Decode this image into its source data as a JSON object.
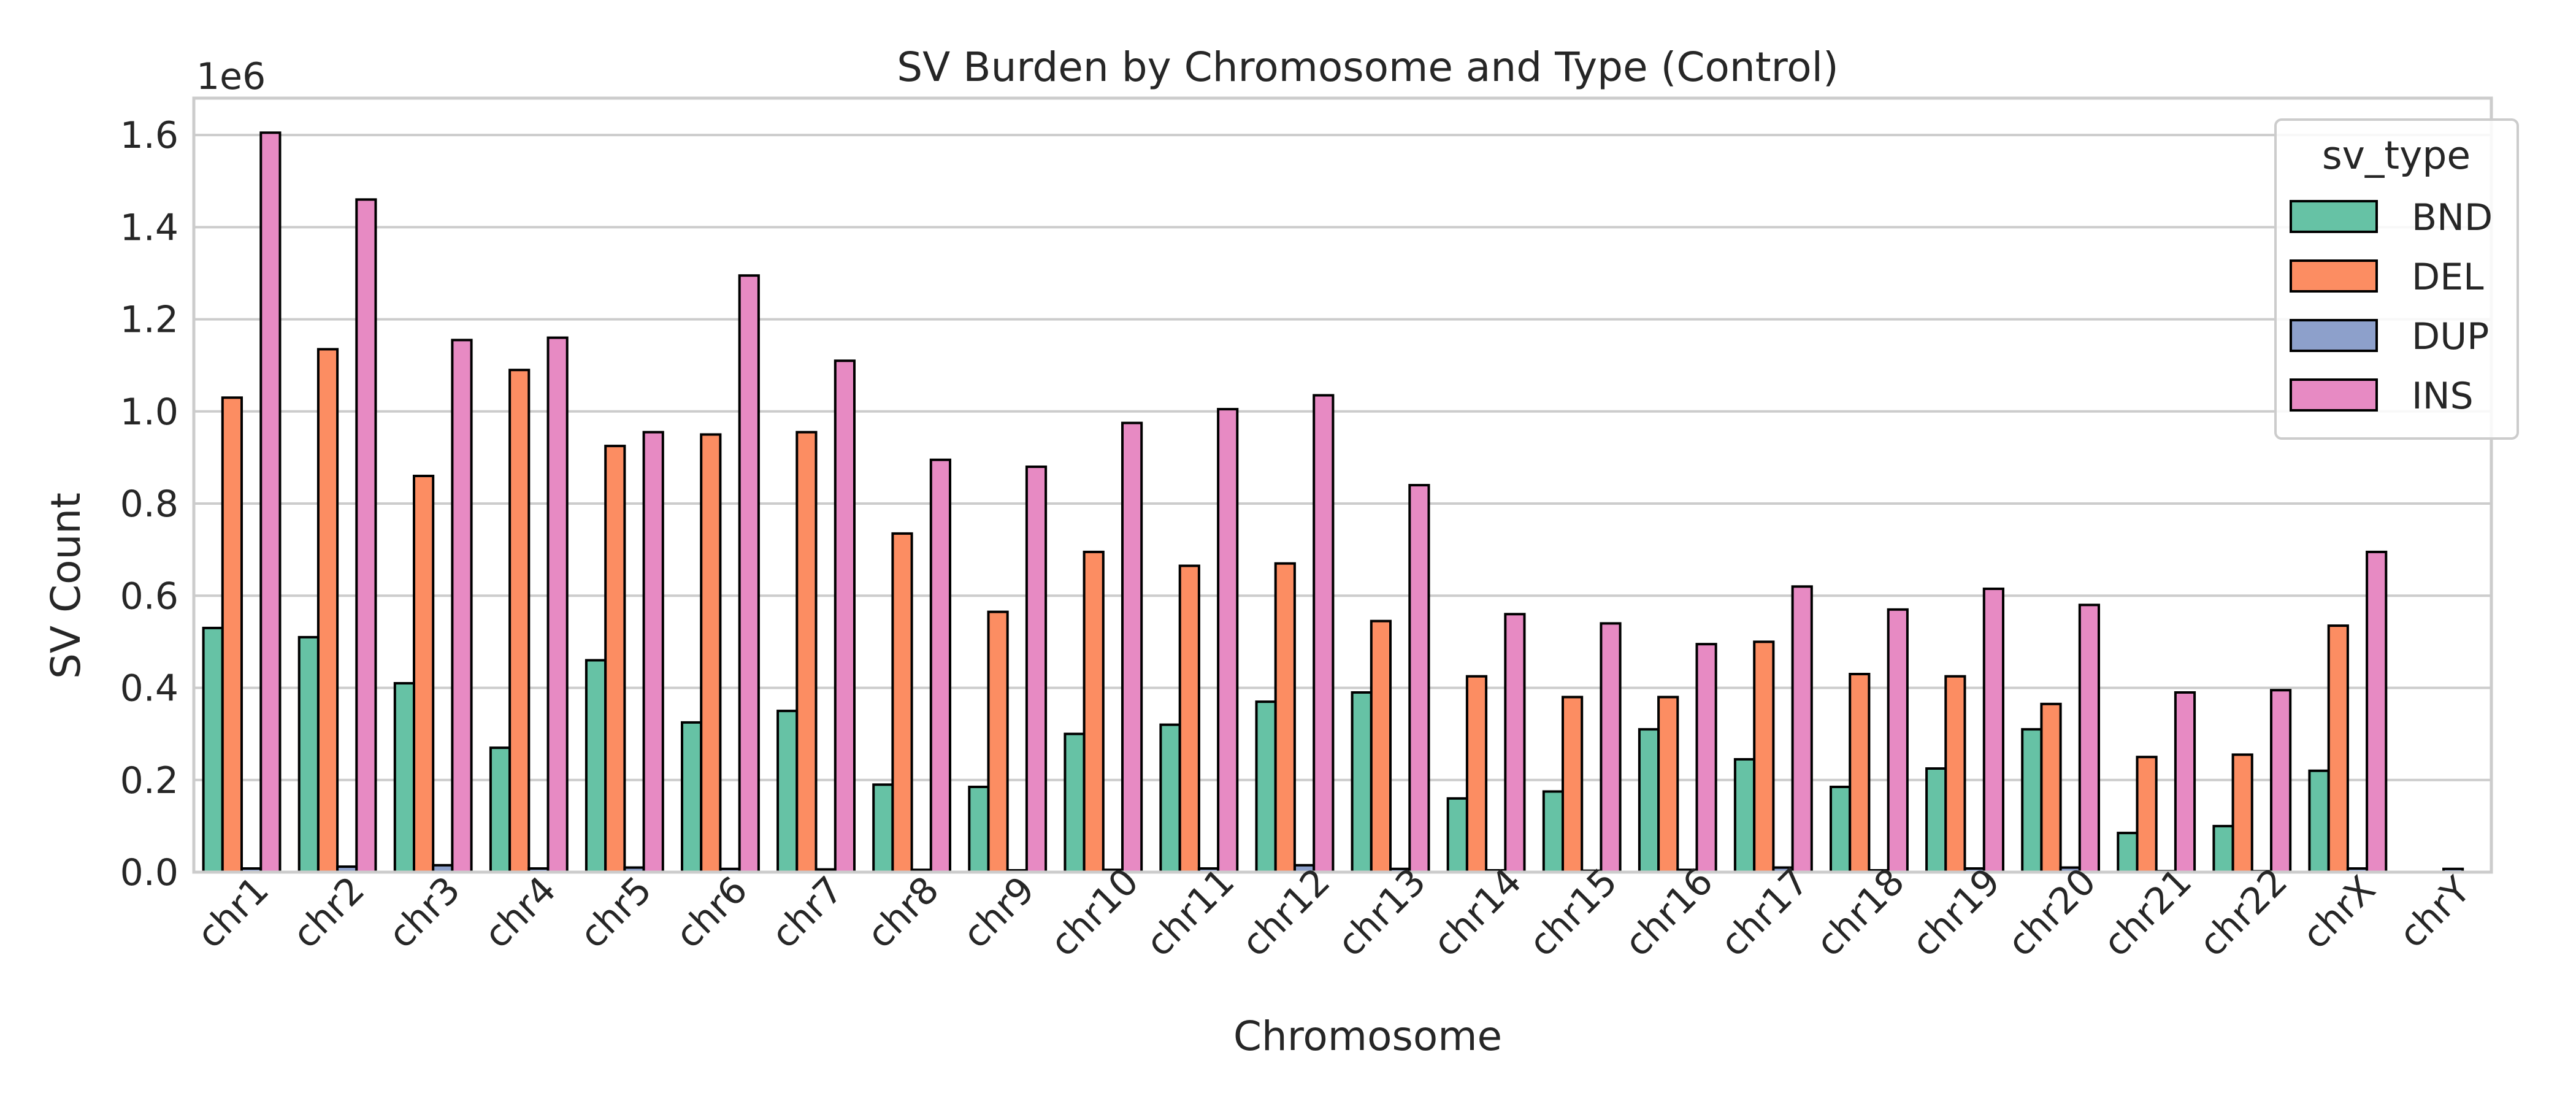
{
  "chart_data": {
    "type": "bar",
    "title": "SV Burden by Chromosome and Type (Control)",
    "xlabel": "Chromosome",
    "ylabel": "SV Count",
    "y_offset_label": "1e6",
    "ylim": [
      0,
      1.68
    ],
    "y_ticks": [
      "0.0",
      "0.2",
      "0.4",
      "0.6",
      "0.8",
      "1.0",
      "1.2",
      "1.4",
      "1.6"
    ],
    "grid": true,
    "legend": {
      "title": "sv_type",
      "position": "top-right"
    },
    "categories": [
      "chr1",
      "chr2",
      "chr3",
      "chr4",
      "chr5",
      "chr6",
      "chr7",
      "chr8",
      "chr9",
      "chr10",
      "chr11",
      "chr12",
      "chr13",
      "chr14",
      "chr15",
      "chr16",
      "chr17",
      "chr18",
      "chr19",
      "chr20",
      "chr21",
      "chr22",
      "chrX",
      "chrY"
    ],
    "series": [
      {
        "name": "BND",
        "color": "#66c2a5",
        "values": [
          0.53,
          0.51,
          0.41,
          0.27,
          0.46,
          0.325,
          0.35,
          0.19,
          0.185,
          0.3,
          0.32,
          0.37,
          0.39,
          0.16,
          0.175,
          0.31,
          0.245,
          0.185,
          0.225,
          0.31,
          0.085,
          0.1,
          0.22,
          0.0
        ]
      },
      {
        "name": "DEL",
        "color": "#fc8d62",
        "values": [
          1.03,
          1.135,
          0.86,
          1.09,
          0.925,
          0.95,
          0.955,
          0.735,
          0.565,
          0.695,
          0.665,
          0.67,
          0.545,
          0.425,
          0.38,
          0.38,
          0.5,
          0.43,
          0.425,
          0.365,
          0.25,
          0.255,
          0.535,
          0.0
        ]
      },
      {
        "name": "DUP",
        "color": "#8da0cb",
        "values": [
          0.008,
          0.012,
          0.015,
          0.008,
          0.01,
          0.007,
          0.006,
          0.005,
          0.004,
          0.005,
          0.008,
          0.015,
          0.007,
          0.004,
          0.003,
          0.005,
          0.01,
          0.004,
          0.008,
          0.01,
          0.002,
          0.002,
          0.008,
          0.007
        ]
      },
      {
        "name": "INS",
        "color": "#e78ac3",
        "values": [
          1.605,
          1.46,
          1.155,
          1.16,
          0.955,
          1.295,
          1.11,
          0.895,
          0.88,
          0.975,
          1.005,
          1.035,
          0.84,
          0.56,
          0.54,
          0.495,
          0.62,
          0.57,
          0.615,
          0.58,
          0.39,
          0.395,
          0.695,
          0.0
        ]
      }
    ]
  }
}
